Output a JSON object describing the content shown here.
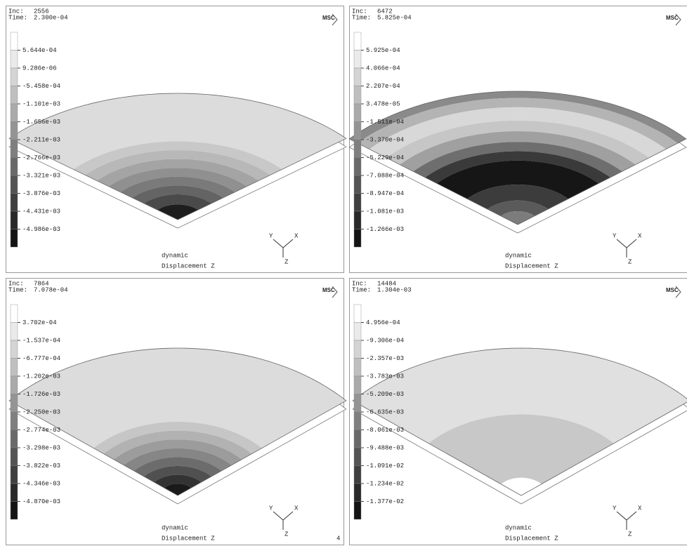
{
  "triad_labels": [
    "Y",
    "X",
    "Z"
  ],
  "panels": [
    {
      "inc_label": "Inc:",
      "inc": "2556",
      "time_label": "Time:",
      "time": "2.300e-04",
      "logo": "MSC",
      "legend": [
        "5.644e-04",
        "9.286e-06",
        "-5.458e-04",
        "-1.101e-03",
        "-1.656e-03",
        "-2.211e-03",
        "-2.766e-03",
        "-3.321e-03",
        "-3.876e-03",
        "-4.431e-03",
        "-4.986e-03"
      ],
      "job": "dynamic",
      "variable": "Displacement Z"
    },
    {
      "inc_label": "Inc:",
      "inc": "6472",
      "time_label": "Time:",
      "time": "5.825e-04",
      "logo": "MSC",
      "legend": [
        "5.925e-04",
        "4.066e-04",
        "2.207e-04",
        "3.478e-05",
        "-1.511e-04",
        "-3.370e-04",
        "-5.229e-04",
        "-7.088e-04",
        "-8.947e-04",
        "-1.081e-03",
        "-1.266e-03"
      ],
      "job": "dynamic",
      "variable": "Displacement Z"
    },
    {
      "inc_label": "Inc:",
      "inc": "7864",
      "time_label": "Time:",
      "time": "7.078e-04",
      "logo": "MSC",
      "legend": [
        "3.702e-04",
        "-1.537e-04",
        "-6.777e-04",
        "-1.202e-03",
        "-1.726e-03",
        "-2.250e-03",
        "-2.774e-03",
        "-3.298e-03",
        "-3.822e-03",
        "-4.346e-03",
        "-4.870e-03"
      ],
      "job": "dynamic",
      "variable": "Displacement Z",
      "corner": "4"
    },
    {
      "inc_label": "Inc:",
      "inc": "14484",
      "time_label": "Time:",
      "time": "1.304e-03",
      "logo": "MSC",
      "legend": [
        "4.956e-04",
        "-9.306e-04",
        "-2.357e-03",
        "-3.783e-03",
        "-5.209e-03",
        "-6.635e-03",
        "-8.061e-03",
        "-9.488e-03",
        "-1.091e-02",
        "-1.234e-02",
        "-1.377e-02"
      ],
      "job": "dynamic",
      "variable": "Displacement Z"
    }
  ]
}
